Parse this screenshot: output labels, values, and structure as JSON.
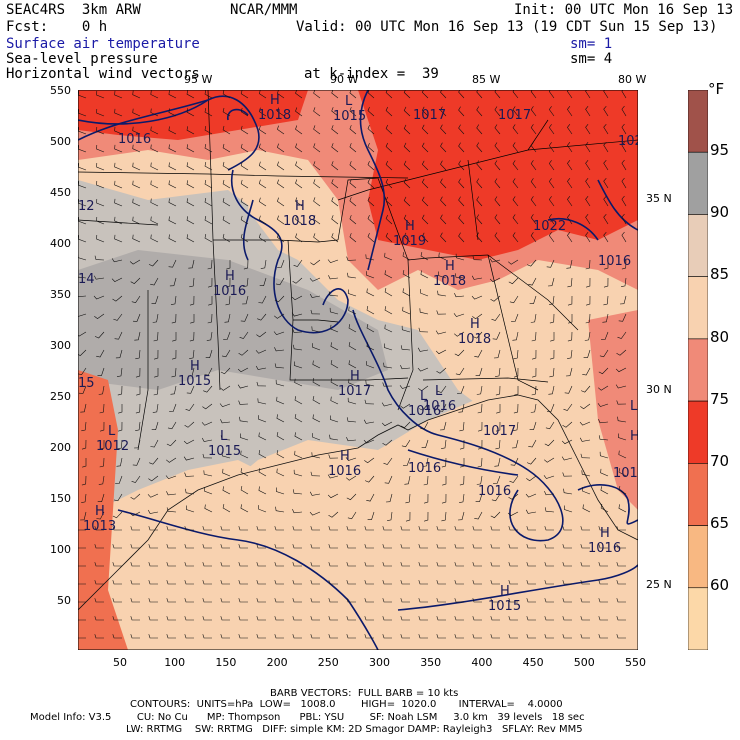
{
  "header": {
    "model": "SEAC4RS  3km ARW",
    "org": "NCAR/MMM",
    "init": "Init: 00 UTC Mon 16 Sep 13",
    "fcst": "Fcst:    0 h",
    "valid": "Valid: 00 UTC Mon 16 Sep 13 (19 CDT Sun 15 Sep 13)",
    "field1": "Surface air temperature",
    "field2": "Sea-level pressure",
    "field3": "Horizontal wind vectors",
    "sm1": "sm= 1",
    "sm2": "sm= 4",
    "level": "at k-index =  39"
  },
  "axes": {
    "x_ticks": [
      "50",
      "100",
      "150",
      "200",
      "250",
      "300",
      "350",
      "400",
      "450",
      "500",
      "550"
    ],
    "y_ticks": [
      "550",
      "500",
      "450",
      "400",
      "350",
      "300",
      "250",
      "200",
      "150",
      "100",
      "50"
    ],
    "lon_labels": [
      "95 W",
      "90 W",
      "85 W",
      "80 W"
    ],
    "lat_labels": [
      "35 N",
      "30 N",
      "25 N"
    ]
  },
  "legend": {
    "unit": "°F",
    "labels": [
      "95",
      "90",
      "85",
      "80",
      "75",
      "70",
      "65",
      "60"
    ],
    "colors": [
      "#a0524a",
      "#a0a0a0",
      "#e8cdb8",
      "#f8d2b0",
      "#f08a78",
      "#ee3a28",
      "#f07050",
      "#f8b882",
      "#fcd8a8"
    ]
  },
  "pressure_labels": [
    {
      "type": "H",
      "value": "1018"
    },
    {
      "type": "",
      "value": "1016"
    },
    {
      "type": "L",
      "value": "1015"
    },
    {
      "type": "",
      "value": "1017"
    },
    {
      "type": "",
      "value": "1017"
    },
    {
      "type": "",
      "value": "102"
    },
    {
      "type": "H",
      "value": "1018"
    },
    {
      "type": "H",
      "value": "1019"
    },
    {
      "type": "",
      "value": "1022"
    },
    {
      "type": "",
      "value": "1016"
    },
    {
      "type": "H",
      "value": "1018"
    },
    {
      "type": "H",
      "value": "1018"
    },
    {
      "type": "H",
      "value": "1016"
    },
    {
      "type": "L",
      "value": "1016"
    },
    {
      "type": "H",
      "value": "1015"
    },
    {
      "type": "H",
      "value": "1017"
    },
    {
      "type": "L",
      "value": "1016"
    },
    {
      "type": "",
      "value": "1017"
    },
    {
      "type": "L",
      "value": "1012"
    },
    {
      "type": "L",
      "value": "1015"
    },
    {
      "type": "H",
      "value": "1016"
    },
    {
      "type": "",
      "value": "1016"
    },
    {
      "type": "",
      "value": "1016"
    },
    {
      "type": "H",
      "value": "1013"
    },
    {
      "type": "H",
      "value": "1016"
    },
    {
      "type": "H",
      "value": "1015"
    },
    {
      "type": "",
      "value": "12"
    },
    {
      "type": "",
      "value": "14"
    },
    {
      "type": "",
      "value": "15"
    },
    {
      "type": "L",
      "value": ""
    },
    {
      "type": "H",
      "value": ""
    },
    {
      "type": "",
      "value": "101"
    }
  ],
  "footer": {
    "barb": "BARB VECTORS:  FULL BARB = 10 kts",
    "contours": "CONTOURS:  UNITS=hPa  LOW=   1008.0        HIGH=  1020.0       INTERVAL=    4.0000",
    "line1": "Model Info: V3.5        CU: No Cu      MP: Thompson      PBL: YSU        SF: Noah LSM     3.0 km   39 levels   18 sec",
    "line2": "LW: RRTMG    SW: RRTMG   DIFF: simple KM: 2D Smagor DAMP: Rayleigh3   SFLAY: Rev MM5"
  }
}
